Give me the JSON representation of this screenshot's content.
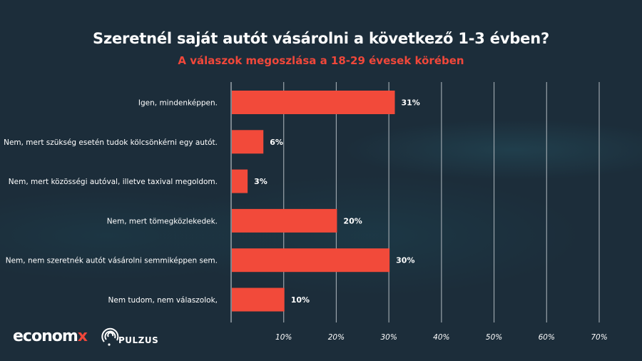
{
  "chart_data": {
    "type": "bar",
    "orientation": "horizontal",
    "title": "Szeretnél saját autót vásárolni a következő 1-3 évben?",
    "subtitle": "A válaszok megoszlása a 18-29 évesek körében",
    "categories": [
      "Igen, mindenképpen.",
      "Nem, mert szükség esetén tudok kölcsönkérni egy autót.",
      "Nem, mert közösségi autóval, illetve taxival megoldom.",
      "Nem, mert tömegközlekedek.",
      "Nem, nem szeretnék autót vásárolni semmiképpen sem.",
      "Nem tudom, nem válaszolok,"
    ],
    "values": [
      31,
      6,
      3,
      20,
      30,
      10
    ],
    "value_labels": [
      "31%",
      "6%",
      "3%",
      "20%",
      "30%",
      "10%"
    ],
    "xlim": [
      0,
      70
    ],
    "x_ticks": [
      10,
      20,
      30,
      40,
      50,
      60,
      70
    ],
    "x_tick_labels": [
      "10%",
      "20%",
      "30%",
      "40%",
      "50%",
      "60%",
      "70%"
    ],
    "grid": true,
    "xlabel": "",
    "ylabel": "",
    "bar_color": "#f24a3a"
  },
  "colors": {
    "background": "#1c2d3a",
    "accent": "#f0473a",
    "grid": "#9aa4ab"
  },
  "logos": {
    "economx_main": "econom",
    "economx_x": "x",
    "pulzus": "PULZUS"
  }
}
